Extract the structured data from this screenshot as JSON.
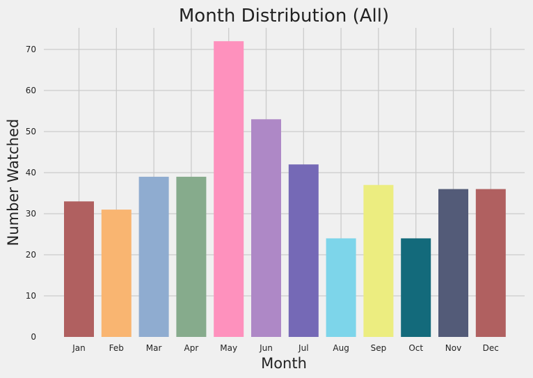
{
  "chart_data": {
    "type": "bar",
    "title": "Month Distribution (All)",
    "xlabel": "Month",
    "ylabel": "Number Watched",
    "categories": [
      "Jan",
      "Feb",
      "Mar",
      "Apr",
      "May",
      "Jun",
      "Jul",
      "Aug",
      "Sep",
      "Oct",
      "Nov",
      "Dec"
    ],
    "values": [
      33,
      31,
      39,
      39,
      72,
      53,
      42,
      24,
      37,
      24,
      36,
      36
    ],
    "colors": [
      "#b06060",
      "#f9b571",
      "#8facd0",
      "#86ab8c",
      "#fe91bd",
      "#ae88c6",
      "#7569b6",
      "#7dd5ea",
      "#eced80",
      "#136a7b",
      "#535b78",
      "#b06060"
    ],
    "yticks": [
      "0",
      "10",
      "20",
      "30",
      "40",
      "50",
      "60",
      "70"
    ],
    "ylim": [
      0,
      75
    ],
    "grid": true
  }
}
